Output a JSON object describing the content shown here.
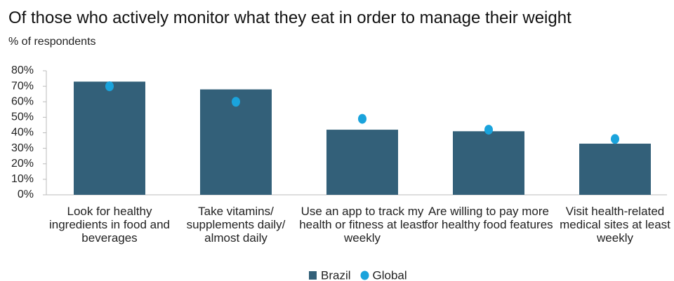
{
  "chart_data": {
    "type": "bar",
    "title": "Of those who actively monitor what they eat in order to manage their weight",
    "subtitle": "% of respondents",
    "categories": [
      "Look for healthy ingredients in food and beverages",
      "Take vitamins/ supplements daily/ almost daily",
      "Use an app to track my health or fitness at least weekly",
      "Are willing to pay more for healthy food features",
      "Visit health-related medical sites at least weekly"
    ],
    "series": [
      {
        "name": "Brazil",
        "type": "bar",
        "color": "#336079",
        "values": [
          73,
          68,
          42,
          41,
          33
        ]
      },
      {
        "name": "Global",
        "type": "scatter",
        "color": "#1aa3dc",
        "values": [
          70,
          60,
          49,
          42,
          36
        ]
      }
    ],
    "ylim": [
      0,
      80
    ],
    "yticks": [
      {
        "value": 0,
        "label": "0%"
      },
      {
        "value": 10,
        "label": "10%"
      },
      {
        "value": 20,
        "label": "20%"
      },
      {
        "value": 30,
        "label": "30%"
      },
      {
        "value": 40,
        "label": "40%"
      },
      {
        "value": 50,
        "label": "50%"
      },
      {
        "value": 60,
        "label": "60%"
      },
      {
        "value": 70,
        "label": "70%"
      },
      {
        "value": 80,
        "label": "80%"
      }
    ],
    "legend": "bottom"
  }
}
